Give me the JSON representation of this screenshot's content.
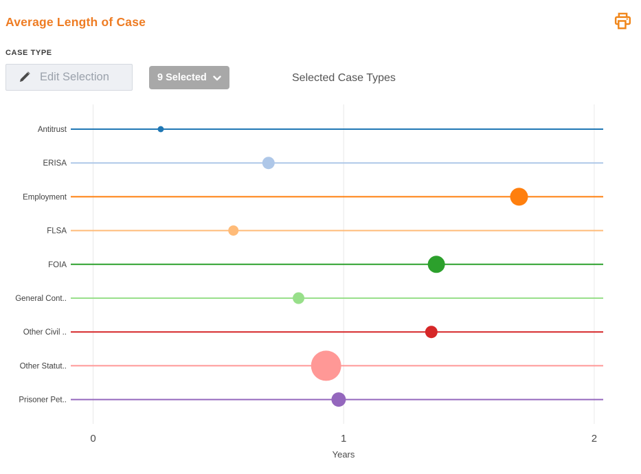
{
  "header": {
    "title": "Average Length of Case"
  },
  "controls": {
    "section_label": "CASE TYPE",
    "edit_button_label": "Edit Selection",
    "selected_count_label": "9 Selected",
    "caption": "Selected Case Types"
  },
  "icons": {
    "print": "printer-icon",
    "pencil": "pencil-icon",
    "chevron": "chevron-down-icon"
  },
  "colors": {
    "accent_orange": "#ee7c23",
    "print_icon": "#f0861a",
    "button_bg": "#eef0f4",
    "button_border": "#d4d8df",
    "button_text": "#9aa1ab",
    "dropdown_bg": "#a8a8a8",
    "grid": "#e8e8e8",
    "axis_text": "#4a4a4a",
    "category_text": "#3f3f3f"
  },
  "chart_data": {
    "type": "scatter",
    "orientation": "horizontal-dot-plot",
    "categories": [
      "Antitrust",
      "ERISA",
      "Employment",
      "FLSA",
      "FOIA",
      "General Cont..",
      "Other Civil ..",
      "Other Statut..",
      "Prisoner Pet.."
    ],
    "values_years": [
      0.27,
      0.7,
      1.7,
      0.56,
      1.37,
      0.82,
      1.35,
      0.93,
      0.98
    ],
    "marker_radius_px": [
      4.5,
      9,
      13,
      7.5,
      12.5,
      8.5,
      9,
      22,
      10.5
    ],
    "series_colors": [
      "#1f77b4",
      "#aec7e8",
      "#ff7f0e",
      "#ffbb78",
      "#2ca02c",
      "#98df8a",
      "#d62728",
      "#ff9896",
      "#9467bd"
    ],
    "xlabel": "Years",
    "x_ticks": [
      0,
      1,
      2
    ],
    "xlim": [
      0,
      2
    ],
    "grid": true,
    "legend": "none"
  }
}
